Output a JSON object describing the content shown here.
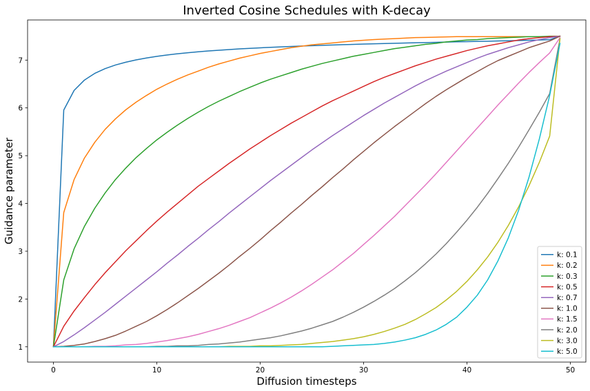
{
  "chart_data": {
    "type": "line",
    "title": "Inverted Cosine Schedules with K-decay",
    "xlabel": "Diffusion timesteps",
    "ylabel": "Guidance parameter",
    "xlim": [
      -2.5,
      51.5
    ],
    "ylim": [
      0.68,
      7.84
    ],
    "xticks": [
      0,
      10,
      20,
      30,
      40,
      50
    ],
    "yticks": [
      1,
      2,
      3,
      4,
      5,
      6,
      7
    ],
    "grid": false,
    "legend_position": "lower-right",
    "x": [
      0,
      1,
      2,
      3,
      4,
      5,
      6,
      7,
      8,
      9,
      10,
      11,
      12,
      13,
      14,
      15,
      16,
      17,
      18,
      19,
      20,
      21,
      22,
      23,
      24,
      25,
      26,
      27,
      28,
      29,
      30,
      31,
      32,
      33,
      34,
      35,
      36,
      37,
      38,
      39,
      40,
      41,
      42,
      43,
      44,
      45,
      46,
      47,
      48,
      49
    ],
    "series": [
      {
        "name": "k: 0.1",
        "color": "#1f77b4",
        "values": [
          1.0,
          5.954,
          6.365,
          6.582,
          6.722,
          6.822,
          6.897,
          6.956,
          7.004,
          7.044,
          7.078,
          7.107,
          7.132,
          7.154,
          7.174,
          7.191,
          7.207,
          7.221,
          7.234,
          7.246,
          7.257,
          7.267,
          7.277,
          7.286,
          7.294,
          7.302,
          7.309,
          7.316,
          7.323,
          7.329,
          7.335,
          7.341,
          7.347,
          7.352,
          7.357,
          7.362,
          7.367,
          7.372,
          7.377,
          7.382,
          7.386,
          7.391,
          7.396,
          7.4,
          7.405,
          7.41,
          7.415,
          7.421,
          7.427,
          7.5
        ]
      },
      {
        "name": "k: 0.2",
        "color": "#ff7f0e",
        "values": [
          1.0,
          3.81,
          4.5,
          4.95,
          5.28,
          5.55,
          5.77,
          5.96,
          6.12,
          6.26,
          6.39,
          6.5,
          6.6,
          6.69,
          6.77,
          6.85,
          6.92,
          6.98,
          7.04,
          7.09,
          7.14,
          7.18,
          7.22,
          7.26,
          7.29,
          7.32,
          7.34,
          7.36,
          7.38,
          7.4,
          7.415,
          7.43,
          7.44,
          7.45,
          7.46,
          7.47,
          7.475,
          7.48,
          7.485,
          7.49,
          7.49,
          7.49,
          7.49,
          7.49,
          7.49,
          7.49,
          7.49,
          7.49,
          7.49,
          7.5
        ]
      },
      {
        "name": "k: 0.3",
        "color": "#2ca02c",
        "values": [
          1.0,
          2.4,
          3.05,
          3.52,
          3.9,
          4.22,
          4.5,
          4.74,
          4.96,
          5.15,
          5.33,
          5.49,
          5.64,
          5.78,
          5.91,
          6.03,
          6.14,
          6.24,
          6.34,
          6.43,
          6.52,
          6.6,
          6.67,
          6.74,
          6.81,
          6.87,
          6.93,
          6.98,
          7.03,
          7.08,
          7.12,
          7.16,
          7.2,
          7.24,
          7.27,
          7.3,
          7.33,
          7.35,
          7.38,
          7.4,
          7.42,
          7.43,
          7.45,
          7.46,
          7.47,
          7.48,
          7.49,
          7.49,
          7.5,
          7.5
        ]
      },
      {
        "name": "k: 0.5",
        "color": "#d62728",
        "values": [
          1.0,
          1.43,
          1.75,
          2.03,
          2.3,
          2.55,
          2.78,
          3.01,
          3.22,
          3.43,
          3.63,
          3.82,
          4.0,
          4.18,
          4.36,
          4.52,
          4.68,
          4.84,
          4.99,
          5.14,
          5.28,
          5.42,
          5.55,
          5.68,
          5.8,
          5.92,
          6.04,
          6.15,
          6.25,
          6.35,
          6.45,
          6.55,
          6.64,
          6.72,
          6.8,
          6.88,
          6.95,
          7.02,
          7.08,
          7.14,
          7.2,
          7.25,
          7.3,
          7.34,
          7.38,
          7.42,
          7.45,
          7.47,
          7.49,
          7.5
        ]
      },
      {
        "name": "k: 0.7",
        "color": "#9467bd",
        "values": [
          1.0,
          1.11,
          1.25,
          1.4,
          1.56,
          1.72,
          1.89,
          2.06,
          2.23,
          2.4,
          2.57,
          2.75,
          2.92,
          3.1,
          3.27,
          3.45,
          3.62,
          3.8,
          3.97,
          4.14,
          4.31,
          4.48,
          4.64,
          4.8,
          4.96,
          5.12,
          5.27,
          5.42,
          5.56,
          5.7,
          5.84,
          5.97,
          6.1,
          6.22,
          6.34,
          6.46,
          6.57,
          6.67,
          6.77,
          6.86,
          6.95,
          7.04,
          7.12,
          7.19,
          7.26,
          7.32,
          7.38,
          7.43,
          7.47,
          7.5
        ]
      },
      {
        "name": "k: 1.0",
        "color": "#8c564b",
        "values": [
          1.0,
          1.01,
          1.03,
          1.06,
          1.11,
          1.17,
          1.24,
          1.33,
          1.43,
          1.53,
          1.65,
          1.78,
          1.92,
          2.07,
          2.22,
          2.38,
          2.54,
          2.71,
          2.89,
          3.06,
          3.24,
          3.43,
          3.61,
          3.8,
          3.98,
          4.17,
          4.35,
          4.54,
          4.72,
          4.91,
          5.09,
          5.27,
          5.44,
          5.61,
          5.77,
          5.93,
          6.09,
          6.24,
          6.38,
          6.51,
          6.64,
          6.76,
          6.88,
          6.99,
          7.08,
          7.17,
          7.26,
          7.33,
          7.4,
          7.5
        ]
      },
      {
        "name": "k: 1.5",
        "color": "#e377c2",
        "values": [
          1.0,
          1.0,
          1.0,
          1.0,
          1.01,
          1.01,
          1.02,
          1.04,
          1.05,
          1.07,
          1.1,
          1.13,
          1.17,
          1.21,
          1.26,
          1.32,
          1.38,
          1.45,
          1.53,
          1.61,
          1.71,
          1.81,
          1.92,
          2.04,
          2.17,
          2.31,
          2.46,
          2.61,
          2.78,
          2.95,
          3.14,
          3.33,
          3.53,
          3.73,
          3.95,
          4.17,
          4.39,
          4.62,
          4.86,
          5.1,
          5.34,
          5.58,
          5.82,
          6.06,
          6.29,
          6.52,
          6.74,
          6.95,
          7.15,
          7.47
        ]
      },
      {
        "name": "k: 2.0",
        "color": "#7f7f7f",
        "values": [
          1.0,
          1.0,
          1.0,
          1.0,
          1.0,
          1.0,
          1.0,
          1.0,
          1.0,
          1.0,
          1.01,
          1.01,
          1.02,
          1.02,
          1.03,
          1.05,
          1.06,
          1.08,
          1.1,
          1.13,
          1.16,
          1.19,
          1.23,
          1.28,
          1.33,
          1.39,
          1.46,
          1.53,
          1.62,
          1.72,
          1.83,
          1.95,
          2.08,
          2.22,
          2.38,
          2.55,
          2.74,
          2.94,
          3.16,
          3.4,
          3.65,
          3.92,
          4.21,
          4.52,
          4.84,
          5.18,
          5.54,
          5.91,
          6.3,
          7.45
        ]
      },
      {
        "name": "k: 3.0",
        "color": "#bcbd22",
        "values": [
          1.0,
          1.0,
          1.0,
          1.0,
          1.0,
          1.0,
          1.0,
          1.0,
          1.0,
          1.0,
          1.0,
          1.0,
          1.0,
          1.0,
          1.0,
          1.0,
          1.0,
          1.01,
          1.01,
          1.01,
          1.02,
          1.02,
          1.03,
          1.04,
          1.05,
          1.07,
          1.09,
          1.11,
          1.14,
          1.17,
          1.21,
          1.26,
          1.32,
          1.39,
          1.47,
          1.57,
          1.69,
          1.82,
          1.98,
          2.16,
          2.37,
          2.61,
          2.88,
          3.19,
          3.54,
          3.93,
          4.37,
          4.86,
          5.41,
          7.45
        ]
      },
      {
        "name": "k: 5.0",
        "color": "#17becf",
        "values": [
          1.0,
          1.0,
          1.0,
          1.0,
          1.0,
          1.0,
          1.0,
          1.0,
          1.0,
          1.0,
          1.0,
          1.0,
          1.0,
          1.0,
          1.0,
          1.0,
          1.0,
          1.0,
          1.0,
          1.0,
          1.0,
          1.0,
          1.0,
          1.0,
          1.0,
          1.0,
          1.0,
          1.01,
          1.02,
          1.03,
          1.04,
          1.05,
          1.07,
          1.1,
          1.14,
          1.19,
          1.26,
          1.35,
          1.47,
          1.62,
          1.83,
          2.08,
          2.4,
          2.8,
          3.28,
          3.86,
          4.55,
          5.35,
          6.26,
          7.35
        ]
      }
    ]
  }
}
